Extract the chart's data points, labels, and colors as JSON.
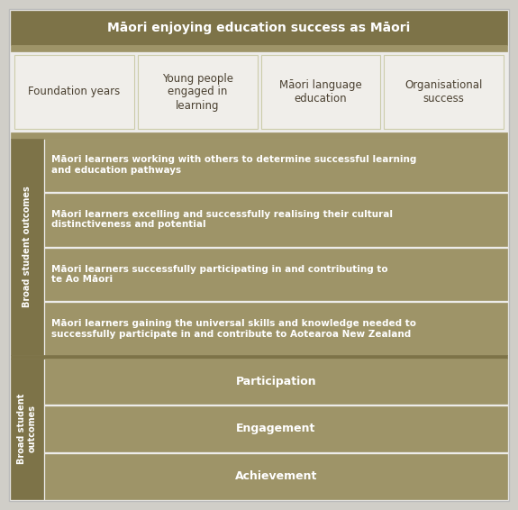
{
  "fig_width": 5.75,
  "fig_height": 5.66,
  "bg_color": "#d0cec8",
  "outer_bg": "#edecea",
  "dark_olive": "#7d7348",
  "medium_olive": "#9e9468",
  "light_gap": "#c8c4b0",
  "white_box": "#f0eeea",
  "text_white": "#ffffff",
  "text_dark": "#4a4030",
  "title_text": "Māori enjoying education success as Māori",
  "focus_boxes": [
    "Foundation years",
    "Young people\nengaged in\nlearning",
    "Māori language\neducation",
    "Organisational\nsuccess"
  ],
  "broad_label": "Broad student outcomes",
  "broad_items": [
    "Māori learners working with others to determine successful learning\nand education pathways",
    "Māori learners excelling and successfully realising their cultural\ndistinctiveness and potential",
    "Māori learners successfully participating in and contributing to\nte Ao Māori",
    "Māori learners gaining the universal skills and knowledge needed to\nsuccessfully participate in and contribute to Aotearoa New Zealand"
  ],
  "critical_label": "Broad student\noutcomes",
  "critical_items": [
    "Participation",
    "Engagement",
    "Achievement"
  ]
}
